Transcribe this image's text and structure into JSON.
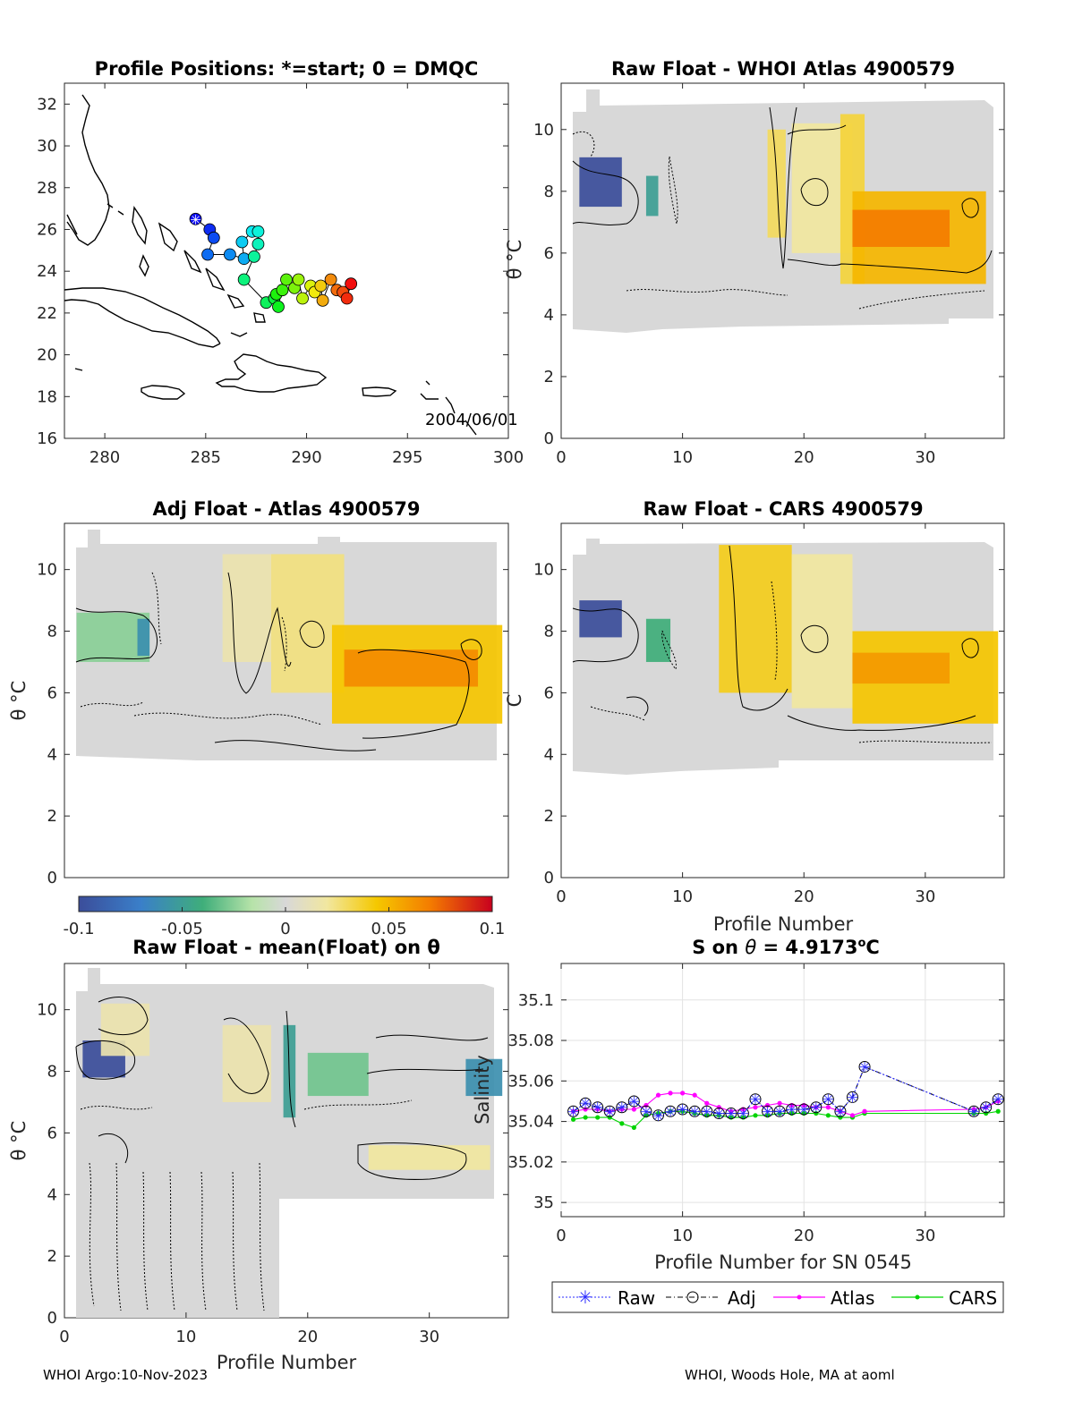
{
  "colors": {
    "raw": "#2b2bff",
    "adj": "#000000",
    "atlas": "#ff00ff",
    "cars": "#00d400",
    "coast": "#000000",
    "neutral": "#d8d8d8"
  },
  "chart_data": [
    {
      "id": "map",
      "type": "scatter",
      "title": "Profile Positions: *=start; 0 = DMQC",
      "xlim": [
        278,
        300
      ],
      "ylim": [
        16,
        33
      ],
      "xticks": [
        "280",
        "285",
        "290",
        "295",
        "300"
      ],
      "yticks": [
        "16",
        "18",
        "20",
        "22",
        "24",
        "26",
        "28",
        "30",
        "32"
      ],
      "annotation": "2004/06/01",
      "points": [
        {
          "lon": 284.5,
          "lat": 26.5
        },
        {
          "lon": 285.2,
          "lat": 26.0
        },
        {
          "lon": 285.4,
          "lat": 25.6
        },
        {
          "lon": 285.1,
          "lat": 24.8
        },
        {
          "lon": 286.2,
          "lat": 24.8
        },
        {
          "lon": 286.9,
          "lat": 24.6
        },
        {
          "lon": 286.8,
          "lat": 25.4
        },
        {
          "lon": 287.3,
          "lat": 25.9
        },
        {
          "lon": 287.6,
          "lat": 25.9
        },
        {
          "lon": 287.6,
          "lat": 25.3
        },
        {
          "lon": 287.4,
          "lat": 24.7
        },
        {
          "lon": 286.9,
          "lat": 23.6
        },
        {
          "lon": 288.0,
          "lat": 22.5
        },
        {
          "lon": 288.4,
          "lat": 22.7
        },
        {
          "lon": 288.6,
          "lat": 22.3
        },
        {
          "lon": 288.5,
          "lat": 22.9
        },
        {
          "lon": 288.8,
          "lat": 23.1
        },
        {
          "lon": 289.0,
          "lat": 23.6
        },
        {
          "lon": 289.4,
          "lat": 23.2
        },
        {
          "lon": 289.6,
          "lat": 23.6
        },
        {
          "lon": 289.8,
          "lat": 22.7
        },
        {
          "lon": 290.2,
          "lat": 23.3
        },
        {
          "lon": 290.4,
          "lat": 23.0
        },
        {
          "lon": 290.7,
          "lat": 23.3
        },
        {
          "lon": 290.8,
          "lat": 22.6
        },
        {
          "lon": 291.2,
          "lat": 23.6
        },
        {
          "lon": 291.5,
          "lat": 23.1
        },
        {
          "lon": 291.8,
          "lat": 23.0
        },
        {
          "lon": 292.0,
          "lat": 22.7
        },
        {
          "lon": 292.2,
          "lat": 23.4
        }
      ]
    },
    {
      "id": "raw_whoi",
      "type": "heatmap",
      "title": "Raw Float - WHOI Atlas  4900579",
      "xlim": [
        0,
        36.5
      ],
      "ylim": [
        0,
        11.5
      ],
      "xticks": [
        "0",
        "10",
        "20",
        "30"
      ],
      "yticks": [
        "0",
        "2",
        "4",
        "6",
        "8",
        "10"
      ],
      "ylabel": "θ °C",
      "blobs": [
        {
          "x0": 1.5,
          "x1": 5,
          "y0": 7.5,
          "y1": 9.1,
          "value": -0.1
        },
        {
          "x0": 7,
          "x1": 8,
          "y0": 7.2,
          "y1": 8.5,
          "value": -0.05
        },
        {
          "x0": 17,
          "x1": 18.5,
          "y0": 6.5,
          "y1": 10.0,
          "value": 0.03
        },
        {
          "x0": 19,
          "x1": 24,
          "y0": 6.0,
          "y1": 10.2,
          "value": 0.02
        },
        {
          "x0": 23,
          "x1": 25,
          "y0": 5.0,
          "y1": 10.5,
          "value": 0.035
        },
        {
          "x0": 24,
          "x1": 35,
          "y0": 5.0,
          "y1": 8.0,
          "value": 0.05
        },
        {
          "x0": 24,
          "x1": 32,
          "y0": 6.2,
          "y1": 7.4,
          "value": 0.07
        }
      ]
    },
    {
      "id": "adj_atlas",
      "type": "heatmap",
      "title": "Adj Float - Atlas  4900579",
      "xlim": [
        0,
        36.5
      ],
      "ylim": [
        0,
        11.5
      ],
      "xticks": [],
      "yticks": [
        "0",
        "2",
        "4",
        "6",
        "8",
        "10"
      ],
      "ylabel": "θ °C",
      "blobs": [
        {
          "x0": 1,
          "x1": 7,
          "y0": 7.0,
          "y1": 8.6,
          "value": -0.025
        },
        {
          "x0": 6,
          "x1": 7,
          "y0": 7.2,
          "y1": 8.4,
          "value": -0.06
        },
        {
          "x0": 13,
          "x1": 17,
          "y0": 7.0,
          "y1": 10.5,
          "value": 0.015
        },
        {
          "x0": 17,
          "x1": 23,
          "y0": 6.0,
          "y1": 10.5,
          "value": 0.025
        },
        {
          "x0": 22,
          "x1": 36,
          "y0": 5.0,
          "y1": 8.2,
          "value": 0.045
        },
        {
          "x0": 23,
          "x1": 34,
          "y0": 6.2,
          "y1": 7.4,
          "value": 0.065
        }
      ]
    },
    {
      "id": "raw_cars",
      "type": "heatmap",
      "title": "Raw Float - CARS  4900579",
      "xlim": [
        0,
        36.5
      ],
      "ylim": [
        0,
        11.5
      ],
      "xticks": [
        "0",
        "10",
        "20",
        "30"
      ],
      "yticks": [
        "0",
        "2",
        "4",
        "6",
        "8",
        "10"
      ],
      "xlabel": "Profile Number",
      "blobs": [
        {
          "x0": 1.5,
          "x1": 5,
          "y0": 7.8,
          "y1": 9.0,
          "value": -0.1
        },
        {
          "x0": 7,
          "x1": 9,
          "y0": 7.0,
          "y1": 8.4,
          "value": -0.04
        },
        {
          "x0": 13,
          "x1": 19,
          "y0": 6.0,
          "y1": 10.8,
          "value": 0.04
        },
        {
          "x0": 19,
          "x1": 24,
          "y0": 5.5,
          "y1": 10.5,
          "value": 0.02
        },
        {
          "x0": 24,
          "x1": 36,
          "y0": 5.0,
          "y1": 8.0,
          "value": 0.045
        },
        {
          "x0": 24,
          "x1": 32,
          "y0": 6.3,
          "y1": 7.3,
          "value": 0.06
        }
      ]
    },
    {
      "id": "raw_mean",
      "type": "heatmap",
      "title": "Raw Float - mean(Float) on θ",
      "xlim": [
        0,
        36.5
      ],
      "ylim": [
        0,
        11.5
      ],
      "xticks": [
        "0",
        "10",
        "20",
        "30"
      ],
      "yticks": [
        "0",
        "2",
        "4",
        "6",
        "8",
        "10"
      ],
      "ylabel": "θ °C",
      "xlabel": "Profile Number",
      "blobs": [
        {
          "x0": 1.5,
          "x1": 5,
          "y0": 7.8,
          "y1": 9.0,
          "value": -0.1
        },
        {
          "x0": 3,
          "x1": 7,
          "y0": 8.5,
          "y1": 10.2,
          "value": 0.015
        },
        {
          "x0": 13,
          "x1": 17,
          "y0": 7.0,
          "y1": 9.5,
          "value": 0.015
        },
        {
          "x0": 18,
          "x1": 19,
          "y0": 6.5,
          "y1": 9.5,
          "value": -0.05
        },
        {
          "x0": 20,
          "x1": 25,
          "y0": 7.2,
          "y1": 8.6,
          "value": -0.03
        },
        {
          "x0": 25,
          "x1": 35,
          "y0": 4.8,
          "y1": 5.6,
          "value": 0.02
        },
        {
          "x0": 33,
          "x1": 36,
          "y0": 7.2,
          "y1": 8.4,
          "value": -0.06
        }
      ]
    },
    {
      "id": "colorbar",
      "type": "heatmap",
      "range": [
        -0.1,
        0.1
      ],
      "ticks": [
        "-0.1",
        "-0.05",
        "0",
        "0.05",
        "0.1"
      ]
    },
    {
      "id": "salinity",
      "type": "line",
      "title": "S on θ = 4.9173°C",
      "xlabel": "Profile Number for SN 0545",
      "ylabel": "Salinity",
      "xlim": [
        0,
        36.5
      ],
      "ylim": [
        34.993,
        35.118
      ],
      "xticks": [
        "0",
        "10",
        "20",
        "30"
      ],
      "yticks": [
        "35",
        "35.02",
        "35.04",
        "35.06",
        "35.08",
        "35.1"
      ],
      "legend_position": "bottom",
      "series": [
        {
          "name": "Raw",
          "x": [
            1,
            2,
            3,
            4,
            5,
            6,
            7,
            8,
            9,
            10,
            11,
            12,
            13,
            14,
            15,
            16,
            17,
            18,
            19,
            20,
            21,
            22,
            23,
            24,
            25,
            34,
            35,
            36
          ],
          "values": [
            35.045,
            35.049,
            35.047,
            35.045,
            35.047,
            35.05,
            35.045,
            35.043,
            35.045,
            35.046,
            35.045,
            35.045,
            35.044,
            35.044,
            35.044,
            35.051,
            35.045,
            35.045,
            35.046,
            35.046,
            35.047,
            35.051,
            35.045,
            35.052,
            35.067,
            35.045,
            35.047,
            35.051
          ]
        },
        {
          "name": "Adj",
          "x": [
            1,
            2,
            3,
            4,
            5,
            6,
            7,
            8,
            9,
            10,
            11,
            12,
            13,
            14,
            15,
            16,
            17,
            18,
            19,
            20,
            21,
            22,
            23,
            24,
            25,
            34,
            35,
            36
          ],
          "values": [
            35.045,
            35.049,
            35.047,
            35.045,
            35.047,
            35.05,
            35.045,
            35.043,
            35.045,
            35.046,
            35.045,
            35.045,
            35.044,
            35.044,
            35.044,
            35.051,
            35.045,
            35.045,
            35.046,
            35.046,
            35.047,
            35.051,
            35.045,
            35.052,
            35.067,
            35.045,
            35.047,
            35.051
          ]
        },
        {
          "name": "Atlas",
          "x": [
            1,
            2,
            3,
            4,
            5,
            6,
            7,
            8,
            9,
            10,
            11,
            12,
            13,
            14,
            15,
            16,
            17,
            18,
            19,
            20,
            21,
            22,
            23,
            24,
            25,
            34,
            35,
            36
          ],
          "values": [
            35.045,
            35.046,
            35.046,
            35.045,
            35.046,
            35.046,
            35.048,
            35.053,
            35.054,
            35.054,
            35.053,
            35.049,
            35.047,
            35.045,
            35.046,
            35.047,
            35.048,
            35.049,
            35.048,
            35.048,
            35.047,
            35.047,
            35.045,
            35.043,
            35.045,
            35.046,
            35.047,
            35.05
          ]
        },
        {
          "name": "CARS",
          "x": [
            1,
            2,
            3,
            4,
            5,
            6,
            7,
            8,
            9,
            10,
            11,
            12,
            13,
            14,
            15,
            16,
            17,
            18,
            19,
            20,
            21,
            22,
            23,
            24,
            25,
            34,
            35,
            36
          ],
          "values": [
            35.041,
            35.042,
            35.042,
            35.042,
            35.039,
            35.037,
            35.043,
            35.044,
            35.045,
            35.045,
            35.044,
            35.043,
            35.043,
            35.042,
            35.042,
            35.043,
            35.043,
            35.044,
            35.044,
            35.044,
            35.044,
            35.043,
            35.042,
            35.042,
            35.044,
            35.044,
            35.044,
            35.045
          ]
        }
      ]
    }
  ],
  "footer": {
    "left": "WHOI Argo:10-Nov-2023",
    "right": "WHOI, Woods Hole, MA at aoml"
  }
}
